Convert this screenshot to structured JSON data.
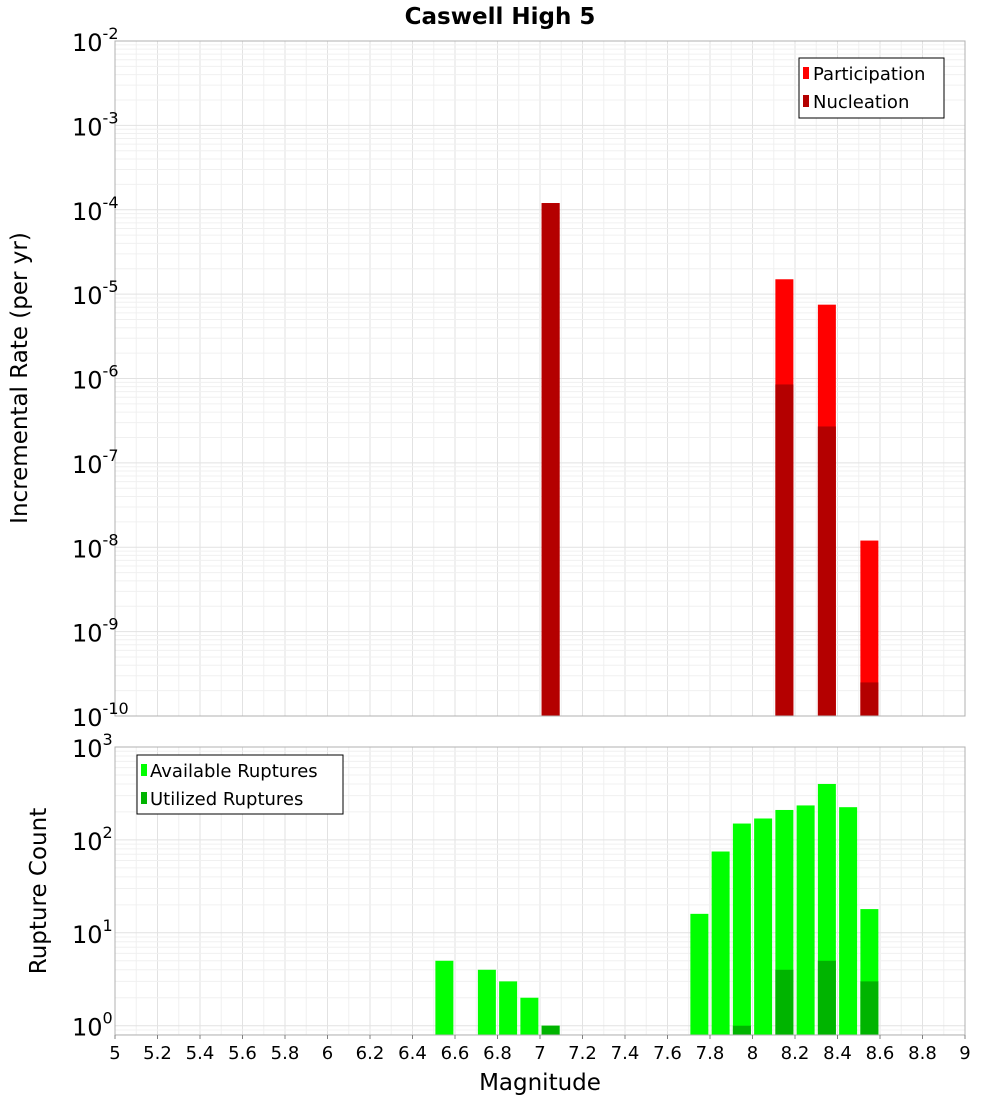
{
  "chart_data": [
    {
      "type": "bar",
      "title": "Caswell High 5",
      "xlabel": "",
      "ylabel": "Incremental Rate (per yr)",
      "xlim": [
        5,
        9
      ],
      "yscale": "log",
      "ylim_exp": [
        -10,
        -2
      ],
      "yticks": [
        {
          "base": "10",
          "exp": "-2"
        },
        {
          "base": "10",
          "exp": "-3"
        },
        {
          "base": "10",
          "exp": "-4"
        },
        {
          "base": "10",
          "exp": "-5"
        },
        {
          "base": "10",
          "exp": "-6"
        },
        {
          "base": "10",
          "exp": "-7"
        },
        {
          "base": "10",
          "exp": "-8"
        },
        {
          "base": "10",
          "exp": "-9"
        },
        {
          "base": "10",
          "exp": "-10"
        }
      ],
      "legend_position": "top-right",
      "series": [
        {
          "name": "Participation",
          "color": "#ff0000",
          "x": [
            7.05,
            8.15,
            8.35,
            8.55
          ],
          "values": [
            0.00012,
            1.5e-05,
            7.5e-06,
            1.2e-08
          ]
        },
        {
          "name": "Nucleation",
          "color": "#b40000",
          "x": [
            7.05,
            8.15,
            8.35,
            8.55
          ],
          "values": [
            0.00012,
            8.5e-07,
            2.7e-07,
            2.5e-10
          ]
        }
      ]
    },
    {
      "type": "bar",
      "title": "",
      "xlabel": "Magnitude",
      "ylabel": "Rupture Count",
      "xlim": [
        5,
        9
      ],
      "yscale": "log",
      "ylim_exp": [
        -0.1,
        3
      ],
      "yticks": [
        {
          "base": "10",
          "exp": "3"
        },
        {
          "base": "10",
          "exp": "2"
        },
        {
          "base": "10",
          "exp": "1"
        },
        {
          "base": "10",
          "exp": "0"
        }
      ],
      "xticks": [
        "5",
        "5.2",
        "5.4",
        "5.6",
        "5.8",
        "6",
        "6.2",
        "6.4",
        "6.6",
        "6.8",
        "7",
        "7.2",
        "7.4",
        "7.6",
        "7.8",
        "8",
        "8.2",
        "8.4",
        "8.6",
        "8.8",
        "9"
      ],
      "legend_position": "top-left",
      "series": [
        {
          "name": "Available Ruptures",
          "color": "#00ff00",
          "x": [
            6.55,
            6.75,
            6.85,
            6.95,
            7.05,
            7.75,
            7.85,
            7.95,
            8.05,
            8.15,
            8.25,
            8.35,
            8.45,
            8.55
          ],
          "values": [
            5,
            4,
            3,
            2,
            1,
            16,
            75,
            150,
            170,
            210,
            235,
            400,
            225,
            18
          ]
        },
        {
          "name": "Utilized Ruptures",
          "color": "#00b400",
          "x": [
            7.05,
            7.95,
            8.15,
            8.35,
            8.55
          ],
          "values": [
            1,
            1,
            4,
            5,
            3
          ]
        }
      ]
    }
  ]
}
